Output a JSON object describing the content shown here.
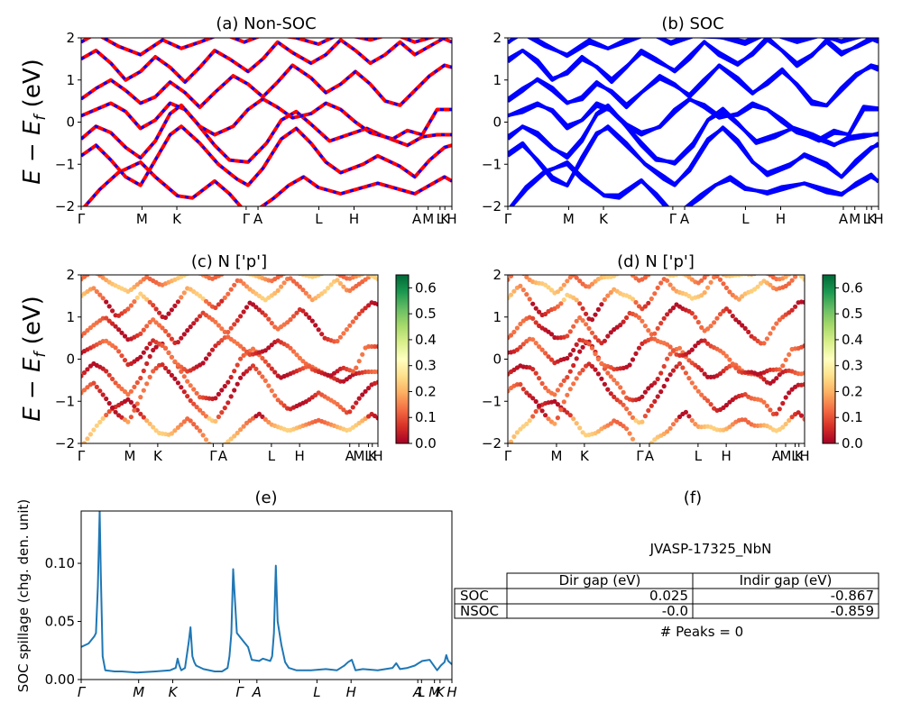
{
  "chart_data": [
    {
      "id": "a",
      "type": "line",
      "title": "(a) Non-SOC",
      "ylabel": "E − E_f (eV)",
      "ylim": [
        -2,
        2
      ],
      "yticks": [
        "−2",
        "−1",
        "0",
        "1",
        "2"
      ],
      "kpath_labels": [
        "Γ",
        "M",
        "K",
        "Γ",
        "A",
        "L",
        "H",
        "A",
        "M",
        "L",
        "K",
        "H"
      ],
      "kpath_positions": [
        0,
        0.164,
        0.258,
        0.445,
        0.477,
        0.641,
        0.736,
        0.905,
        0.936,
        0.968,
        0.981,
        1.0
      ],
      "series_colors": [
        "#ff0000",
        "#0000ff"
      ],
      "line_style": "red solid with blue dashes (spin up / spin down)",
      "bands": [
        [
          [
            0,
            -2.1
          ],
          [
            0.05,
            -1.6
          ],
          [
            0.1,
            -1.2
          ],
          [
            0.16,
            -0.95
          ],
          [
            0.2,
            -1.3
          ],
          [
            0.26,
            -1.75
          ],
          [
            0.3,
            -1.8
          ],
          [
            0.36,
            -1.4
          ],
          [
            0.4,
            -1.7
          ],
          [
            0.44,
            -2.1
          ],
          [
            0.48,
            -2.05
          ],
          [
            0.52,
            -1.8
          ],
          [
            0.56,
            -1.5
          ],
          [
            0.6,
            -1.3
          ],
          [
            0.64,
            -1.55
          ],
          [
            0.7,
            -1.7
          ],
          [
            0.74,
            -1.6
          ],
          [
            0.8,
            -1.45
          ],
          [
            0.86,
            -1.6
          ],
          [
            0.9,
            -1.7
          ],
          [
            0.94,
            -1.5
          ],
          [
            0.98,
            -1.3
          ],
          [
            1,
            -1.4
          ]
        ],
        [
          [
            0,
            -0.8
          ],
          [
            0.04,
            -0.55
          ],
          [
            0.08,
            -0.9
          ],
          [
            0.12,
            -1.3
          ],
          [
            0.16,
            -1.5
          ],
          [
            0.2,
            -0.9
          ],
          [
            0.24,
            -0.3
          ],
          [
            0.27,
            -0.1
          ],
          [
            0.32,
            -0.5
          ],
          [
            0.37,
            -1.0
          ],
          [
            0.42,
            -1.35
          ],
          [
            0.45,
            -1.5
          ],
          [
            0.49,
            -1.1
          ],
          [
            0.54,
            -0.4
          ],
          [
            0.58,
            -0.15
          ],
          [
            0.62,
            -0.5
          ],
          [
            0.66,
            -0.95
          ],
          [
            0.7,
            -1.2
          ],
          [
            0.76,
            -1.0
          ],
          [
            0.8,
            -0.8
          ],
          [
            0.86,
            -1.05
          ],
          [
            0.9,
            -1.3
          ],
          [
            0.94,
            -0.9
          ],
          [
            0.98,
            -0.6
          ],
          [
            1,
            -0.55
          ]
        ],
        [
          [
            0,
            -0.4
          ],
          [
            0.04,
            -0.1
          ],
          [
            0.08,
            -0.25
          ],
          [
            0.12,
            -0.6
          ],
          [
            0.16,
            -0.85
          ],
          [
            0.2,
            -0.45
          ],
          [
            0.24,
            0.2
          ],
          [
            0.27,
            0.4
          ],
          [
            0.31,
            0.0
          ],
          [
            0.36,
            -0.55
          ],
          [
            0.4,
            -0.9
          ],
          [
            0.45,
            -0.95
          ],
          [
            0.5,
            -0.5
          ],
          [
            0.54,
            0.05
          ],
          [
            0.58,
            0.25
          ],
          [
            0.62,
            -0.05
          ],
          [
            0.67,
            -0.45
          ],
          [
            0.72,
            -0.3
          ],
          [
            0.77,
            -0.15
          ],
          [
            0.82,
            -0.35
          ],
          [
            0.88,
            -0.55
          ],
          [
            0.92,
            -0.35
          ],
          [
            0.96,
            -0.3
          ],
          [
            1,
            -0.3
          ]
        ],
        [
          [
            0,
            0.15
          ],
          [
            0.04,
            0.3
          ],
          [
            0.08,
            0.45
          ],
          [
            0.12,
            0.25
          ],
          [
            0.16,
            -0.15
          ],
          [
            0.2,
            0.05
          ],
          [
            0.24,
            0.45
          ],
          [
            0.28,
            0.3
          ],
          [
            0.32,
            -0.1
          ],
          [
            0.36,
            -0.3
          ],
          [
            0.41,
            -0.1
          ],
          [
            0.45,
            0.3
          ],
          [
            0.49,
            0.55
          ],
          [
            0.53,
            0.35
          ],
          [
            0.57,
            0.1
          ],
          [
            0.62,
            0.2
          ],
          [
            0.66,
            0.45
          ],
          [
            0.7,
            0.3
          ],
          [
            0.74,
            0.0
          ],
          [
            0.78,
            -0.25
          ],
          [
            0.84,
            -0.4
          ],
          [
            0.88,
            -0.2
          ],
          [
            0.92,
            -0.3
          ],
          [
            0.96,
            0.3
          ],
          [
            1,
            0.3
          ]
        ],
        [
          [
            0,
            0.55
          ],
          [
            0.04,
            0.8
          ],
          [
            0.08,
            1.0
          ],
          [
            0.12,
            0.75
          ],
          [
            0.16,
            0.45
          ],
          [
            0.2,
            0.6
          ],
          [
            0.24,
            0.95
          ],
          [
            0.28,
            0.7
          ],
          [
            0.32,
            0.35
          ],
          [
            0.36,
            0.7
          ],
          [
            0.41,
            1.1
          ],
          [
            0.45,
            0.9
          ],
          [
            0.49,
            0.6
          ],
          [
            0.53,
            0.95
          ],
          [
            0.57,
            1.35
          ],
          [
            0.62,
            1.05
          ],
          [
            0.66,
            0.7
          ],
          [
            0.7,
            0.9
          ],
          [
            0.74,
            1.2
          ],
          [
            0.78,
            0.9
          ],
          [
            0.82,
            0.5
          ],
          [
            0.86,
            0.4
          ],
          [
            0.9,
            0.75
          ],
          [
            0.94,
            1.1
          ],
          [
            0.98,
            1.35
          ],
          [
            1,
            1.3
          ]
        ],
        [
          [
            0,
            1.5
          ],
          [
            0.04,
            1.7
          ],
          [
            0.08,
            1.4
          ],
          [
            0.12,
            1.0
          ],
          [
            0.16,
            1.2
          ],
          [
            0.2,
            1.55
          ],
          [
            0.24,
            1.3
          ],
          [
            0.28,
            0.95
          ],
          [
            0.32,
            1.3
          ],
          [
            0.36,
            1.7
          ],
          [
            0.4,
            1.5
          ],
          [
            0.45,
            1.2
          ],
          [
            0.49,
            1.5
          ],
          [
            0.53,
            1.9
          ],
          [
            0.57,
            1.65
          ],
          [
            0.62,
            1.4
          ],
          [
            0.66,
            1.6
          ],
          [
            0.7,
            1.95
          ],
          [
            0.74,
            1.7
          ],
          [
            0.78,
            1.4
          ],
          [
            0.82,
            1.6
          ],
          [
            0.86,
            1.9
          ],
          [
            0.9,
            1.6
          ],
          [
            0.94,
            1.8
          ],
          [
            1,
            2.1
          ]
        ],
        [
          [
            0,
            1.9
          ],
          [
            0.04,
            2.1
          ],
          [
            0.1,
            1.8
          ],
          [
            0.16,
            1.6
          ],
          [
            0.22,
            1.95
          ],
          [
            0.27,
            1.75
          ],
          [
            0.32,
            1.9
          ],
          [
            0.38,
            2.1
          ],
          [
            0.44,
            1.9
          ],
          [
            0.5,
            2.1
          ],
          [
            0.58,
            2.0
          ],
          [
            0.64,
            1.85
          ],
          [
            0.7,
            2.1
          ],
          [
            0.78,
            1.95
          ],
          [
            0.84,
            2.1
          ],
          [
            0.9,
            1.9
          ],
          [
            0.96,
            2.05
          ],
          [
            1,
            1.9
          ]
        ]
      ]
    },
    {
      "id": "b",
      "type": "line",
      "title": "(b) SOC",
      "ylim": [
        -2,
        2
      ],
      "yticks": [
        "−2",
        "−1",
        "0",
        "1",
        "2"
      ],
      "kpath_labels": [
        "Γ",
        "M",
        "K",
        "Γ",
        "A",
        "L",
        "H",
        "A",
        "M",
        "L",
        "K",
        "H"
      ],
      "kpath_positions": [
        0,
        0.164,
        0.258,
        0.445,
        0.477,
        0.641,
        0.736,
        0.905,
        0.936,
        0.968,
        0.981,
        1.0
      ],
      "series_colors": [
        "#0000ff"
      ]
    },
    {
      "id": "c",
      "type": "scatter",
      "title": "(c)  N ['p']",
      "ylabel": "E − E_f (eV)",
      "ylim": [
        -2,
        2
      ],
      "yticks": [
        "−2",
        "−1",
        "0",
        "1",
        "2"
      ],
      "kpath_labels": [
        "Γ",
        "M",
        "K",
        "Γ",
        "A",
        "L",
        "H",
        "A",
        "M",
        "L",
        "K",
        "H"
      ],
      "kpath_positions": [
        0,
        0.164,
        0.258,
        0.445,
        0.477,
        0.641,
        0.736,
        0.905,
        0.936,
        0.968,
        0.981,
        1.0
      ],
      "colormap": "RdYlGn",
      "colorbar_ticks": [
        "0.0",
        "0.1",
        "0.2",
        "0.3",
        "0.4",
        "0.5",
        "0.6"
      ],
      "colorbar_range": [
        0,
        0.65
      ]
    },
    {
      "id": "d",
      "type": "scatter",
      "title": "(d) N ['p']",
      "ylim": [
        -2,
        2
      ],
      "yticks": [
        "−2",
        "−1",
        "0",
        "1",
        "2"
      ],
      "kpath_labels": [
        "Γ",
        "M",
        "K",
        "Γ",
        "A",
        "L",
        "H",
        "A",
        "M",
        "L",
        "K",
        "H"
      ],
      "kpath_positions": [
        0,
        0.164,
        0.258,
        0.445,
        0.477,
        0.641,
        0.736,
        0.905,
        0.936,
        0.968,
        0.981,
        1.0
      ],
      "colormap": "RdYlGn",
      "colorbar_ticks": [
        "0.0",
        "0.1",
        "0.2",
        "0.3",
        "0.4",
        "0.5",
        "0.6"
      ],
      "colorbar_range": [
        0,
        0.65
      ]
    },
    {
      "id": "e",
      "type": "line",
      "title": "(e)",
      "ylabel": "SOC spillage (chg. den. unit)",
      "ylim": [
        0,
        0.145
      ],
      "yticks": [
        "0.00",
        "0.05",
        "0.10"
      ],
      "ytick_values": [
        0,
        0.05,
        0.1
      ],
      "kpath_labels": [
        "Γ",
        "M",
        "K",
        "Γ",
        "A",
        "L",
        "H",
        "A",
        "L",
        "M",
        "K",
        "H"
      ],
      "kpath_positions": [
        0,
        0.155,
        0.247,
        0.427,
        0.474,
        0.636,
        0.728,
        0.908,
        0.918,
        0.953,
        0.968,
        1.0
      ],
      "color": "#1f77b4",
      "x": [
        0,
        0.02,
        0.035,
        0.04,
        0.045,
        0.05,
        0.053,
        0.058,
        0.065,
        0.09,
        0.11,
        0.15,
        0.2,
        0.24,
        0.255,
        0.26,
        0.265,
        0.27,
        0.28,
        0.29,
        0.295,
        0.3,
        0.305,
        0.31,
        0.33,
        0.36,
        0.38,
        0.395,
        0.4,
        0.405,
        0.41,
        0.42,
        0.44,
        0.45,
        0.46,
        0.48,
        0.49,
        0.5,
        0.51,
        0.515,
        0.52,
        0.525,
        0.53,
        0.54,
        0.55,
        0.56,
        0.58,
        0.62,
        0.66,
        0.69,
        0.71,
        0.72,
        0.73,
        0.74,
        0.76,
        0.8,
        0.84,
        0.85,
        0.86,
        0.88,
        0.9,
        0.91,
        0.92,
        0.94,
        0.96,
        0.97,
        0.98,
        0.985,
        0.99,
        1.0
      ],
      "y": [
        0.028,
        0.031,
        0.037,
        0.04,
        0.08,
        0.145,
        0.09,
        0.02,
        0.008,
        0.007,
        0.007,
        0.006,
        0.007,
        0.008,
        0.01,
        0.018,
        0.012,
        0.008,
        0.01,
        0.032,
        0.045,
        0.02,
        0.015,
        0.012,
        0.009,
        0.007,
        0.007,
        0.01,
        0.02,
        0.04,
        0.095,
        0.04,
        0.032,
        0.028,
        0.017,
        0.016,
        0.018,
        0.017,
        0.016,
        0.02,
        0.04,
        0.098,
        0.05,
        0.03,
        0.015,
        0.01,
        0.008,
        0.008,
        0.009,
        0.008,
        0.012,
        0.015,
        0.017,
        0.008,
        0.009,
        0.008,
        0.01,
        0.014,
        0.009,
        0.01,
        0.012,
        0.014,
        0.016,
        0.017,
        0.008,
        0.012,
        0.015,
        0.021,
        0.016,
        0.013
      ]
    }
  ],
  "panel_f": {
    "title": "(f)",
    "caption": "JVASP-17325_NbN",
    "headers": [
      "Dir gap (eV)",
      "Indir gap (eV)"
    ],
    "rows": [
      {
        "label": "SOC",
        "dir": "0.025",
        "indir": "-0.867"
      },
      {
        "label": "NSOC",
        "dir": "-0.0",
        "indir": "-0.859"
      }
    ],
    "peaks": "# Peaks = 0"
  }
}
